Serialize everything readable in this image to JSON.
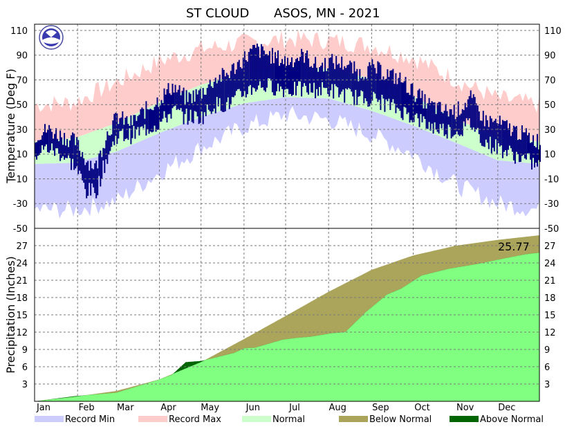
{
  "chart_data": [
    {
      "type": "area",
      "title_station": "ST CLOUD",
      "title_rest": "ASOS, MN - 2021",
      "ylabel": "Temperature (Deg F)",
      "ylim": [
        -50,
        115
      ],
      "yticks": [
        -50,
        -30,
        -10,
        10,
        30,
        50,
        70,
        90,
        110
      ],
      "months": [
        "Jan",
        "Feb",
        "Mar",
        "Apr",
        "May",
        "Jun",
        "Jul",
        "Aug",
        "Sep",
        "Oct",
        "Nov",
        "Dec"
      ],
      "grid": true,
      "colors": {
        "record_min": "#ccccff",
        "record_max": "#ffcccc",
        "normal": "#ccffcc",
        "observed": "#000080"
      },
      "normal": {
        "day": [
          1,
          30,
          60,
          91,
          121,
          152,
          182,
          213,
          244,
          274,
          305,
          335,
          365
        ],
        "low": [
          2,
          3,
          12,
          27,
          40,
          51,
          56,
          55,
          45,
          33,
          19,
          5,
          2
        ],
        "high": [
          20,
          23,
          35,
          52,
          66,
          76,
          81,
          79,
          71,
          57,
          38,
          24,
          20
        ]
      },
      "record": {
        "day": [
          1,
          30,
          60,
          91,
          121,
          152,
          182,
          213,
          244,
          274,
          305,
          335,
          365
        ],
        "min": [
          -35,
          -35,
          -28,
          -5,
          15,
          32,
          42,
          38,
          26,
          10,
          -15,
          -30,
          -35
        ],
        "max": [
          50,
          52,
          68,
          85,
          95,
          100,
          103,
          102,
          98,
          88,
          70,
          55,
          50
        ]
      },
      "observed_anchor": {
        "day": [
          1,
          10,
          20,
          30,
          38,
          45,
          52,
          60,
          70,
          80,
          91,
          100,
          110,
          121,
          130,
          140,
          152,
          160,
          170,
          182,
          195,
          205,
          213,
          225,
          235,
          244,
          255,
          265,
          274,
          285,
          295,
          305,
          315,
          325,
          335,
          345,
          355,
          365
        ],
        "high": [
          25,
          30,
          25,
          20,
          5,
          0,
          25,
          40,
          35,
          45,
          55,
          65,
          55,
          60,
          70,
          75,
          88,
          95,
          90,
          85,
          90,
          80,
          85,
          83,
          75,
          80,
          75,
          70,
          60,
          50,
          45,
          45,
          55,
          38,
          35,
          30,
          25,
          20
        ],
        "low": [
          10,
          15,
          10,
          0,
          -20,
          -20,
          5,
          25,
          25,
          30,
          35,
          45,
          40,
          40,
          50,
          50,
          60,
          65,
          65,
          62,
          62,
          62,
          62,
          58,
          55,
          55,
          50,
          45,
          40,
          33,
          30,
          28,
          35,
          20,
          15,
          10,
          5,
          0
        ]
      }
    },
    {
      "type": "area",
      "ylabel": "Precipitation (Inches)",
      "ylim": [
        0,
        30
      ],
      "yticks": [
        3,
        6,
        9,
        12,
        15,
        18,
        21,
        24,
        27
      ],
      "yticks_right": [
        -50,
        3,
        6,
        9,
        12,
        15,
        18,
        21,
        24,
        27
      ],
      "annotation": "25.77",
      "colors": {
        "observed": "#80ff80",
        "below_normal": "#aaa55a",
        "above_normal": "#006400"
      },
      "normal_cumulative": {
        "day": [
          1,
          30,
          60,
          91,
          121,
          152,
          182,
          213,
          244,
          274,
          305,
          335,
          365
        ],
        "value": [
          0,
          0.8,
          1.8,
          3.8,
          6.8,
          10.8,
          14.8,
          19.0,
          22.8,
          25.3,
          27.0,
          28.0,
          28.8
        ]
      },
      "observed_cumulative": {
        "day": [
          1,
          30,
          60,
          75,
          90,
          100,
          110,
          121,
          130,
          145,
          152,
          160,
          180,
          190,
          200,
          215,
          225,
          240,
          255,
          265,
          280,
          300,
          320,
          340,
          355,
          365
        ],
        "value": [
          0,
          0.9,
          1.5,
          2.6,
          3.7,
          4.6,
          6.8,
          7.0,
          7.5,
          8.4,
          9.2,
          9.3,
          10.7,
          11.0,
          11.2,
          11.8,
          12.0,
          15.5,
          18.5,
          19.5,
          21.8,
          23.0,
          23.8,
          24.8,
          25.5,
          25.77
        ]
      }
    }
  ],
  "legend": [
    {
      "label": "Record Min",
      "color": "#ccccff"
    },
    {
      "label": "Record Max",
      "color": "#ffcccc"
    },
    {
      "label": "Normal",
      "color": "#ccffcc"
    },
    {
      "label": "Below Normal",
      "color": "#aaa55a"
    },
    {
      "label": "Above Normal",
      "color": "#006400"
    }
  ]
}
